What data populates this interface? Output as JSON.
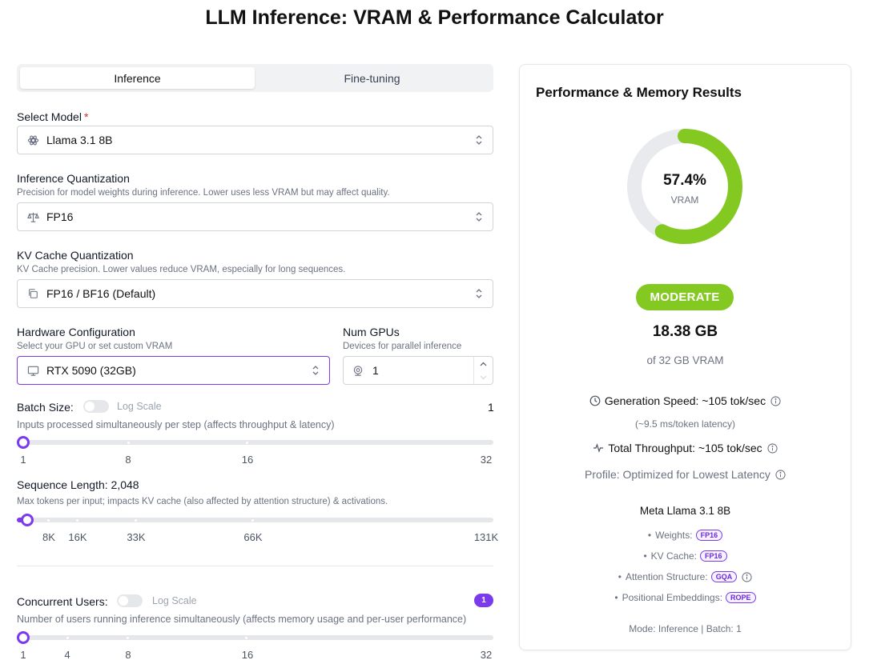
{
  "page": {
    "title": "LLM Inference: VRAM & Performance Calculator"
  },
  "tabs": [
    {
      "label": "Inference",
      "active": true
    },
    {
      "label": "Fine-tuning",
      "active": false
    }
  ],
  "model": {
    "label": "Select Model",
    "required_mark": "*",
    "value": "Llama 3.1 8B",
    "icon": "model-icon"
  },
  "inference_quant": {
    "label": "Inference Quantization",
    "description": "Precision for model weights during inference. Lower uses less VRAM but may affect quality.",
    "value": "FP16",
    "icon": "scale-icon"
  },
  "kv_quant": {
    "label": "KV Cache Quantization",
    "description": "KV Cache precision. Lower values reduce VRAM, especially for long sequences.",
    "value": "FP16 / BF16 (Default)",
    "icon": "copy-icon"
  },
  "hardware": {
    "label": "Hardware Configuration",
    "description": "Select your GPU or set custom VRAM",
    "value": "RTX 5090 (32GB)",
    "icon": "monitor-icon"
  },
  "num_gpus": {
    "label": "Num GPUs",
    "description": "Devices for parallel inference",
    "value": "1",
    "icon": "webcam-icon"
  },
  "batch": {
    "label": "Batch Size:",
    "log_scale_label": "Log Scale",
    "log_scale_on": false,
    "value": "1",
    "description": "Inputs processed simultaneously per step (affects throughput & latency)",
    "ticks": [
      "1",
      "8",
      "16",
      "32"
    ],
    "position": 0.0
  },
  "sequence": {
    "label": "Sequence Length: 2,048",
    "description": "Max tokens per input; impacts KV cache (also affected by attention structure) & activations.",
    "ticks": [
      "8K",
      "16K",
      "33K",
      "66K",
      "131K"
    ],
    "position": 0.016
  },
  "users": {
    "label": "Concurrent Users:",
    "log_scale_label": "Log Scale",
    "log_scale_on": false,
    "value": "1",
    "description": "Number of users running inference simultaneously (affects memory usage and per-user performance)",
    "ticks": [
      "1",
      "4",
      "8",
      "16",
      "32"
    ],
    "position": 0.0
  },
  "results": {
    "title": "Performance & Memory Results",
    "vram_percent_label": "57.4%",
    "vram_fraction": 0.574,
    "vram_caption": "VRAM",
    "status": "MODERATE",
    "vram_used": "18.38 GB",
    "vram_total": "of 32 GB VRAM",
    "generation_speed": "Generation Speed: ~105 tok/sec",
    "latency": "(~9.5 ms/token latency)",
    "throughput": "Total Throughput: ~105 tok/sec",
    "profile": "Profile: Optimized for Lowest Latency",
    "model_name": "Meta Llama 3.1 8B",
    "specs": [
      {
        "label": "Weights:",
        "chip": "FP16",
        "info": false
      },
      {
        "label": "KV Cache:",
        "chip": "FP16",
        "info": false
      },
      {
        "label": "Attention Structure:",
        "chip": "GQA",
        "info": true
      },
      {
        "label": "Positional Embeddings:",
        "chip": "ROPE",
        "info": false
      }
    ],
    "mode_line": "Mode: Inference | Batch: 1"
  },
  "colors": {
    "accent": "#7c3aed",
    "good": "#84c921",
    "track": "#e5e7eb"
  }
}
